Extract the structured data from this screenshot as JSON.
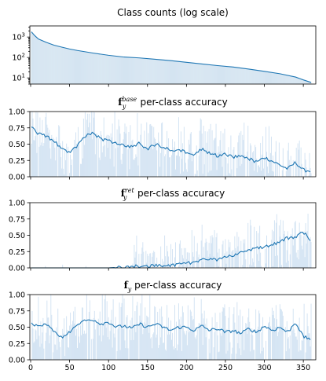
{
  "chart_data": [
    {
      "type": "area",
      "title": "Class counts (log scale)",
      "xlabel": "",
      "ylabel": "",
      "yscale": "log",
      "xlim": [
        -1,
        366
      ],
      "ylim": [
        5,
        3500
      ],
      "yticks": [
        10,
        100,
        1000
      ],
      "ytick_labels": [
        {
          "base": "10",
          "exp": "1"
        },
        {
          "base": "10",
          "exp": "2"
        },
        {
          "base": "10",
          "exp": "3"
        }
      ],
      "x_tick_labels_shown": false,
      "series": [
        {
          "x": [
            1,
            5,
            10,
            20,
            30,
            40,
            50,
            60,
            80,
            100,
            120,
            140,
            160,
            180,
            200,
            220,
            240,
            260,
            280,
            300,
            320,
            340,
            350,
            360
          ],
          "values": [
            1800,
            1200,
            800,
            550,
            400,
            320,
            260,
            220,
            165,
            128,
            105,
            95,
            82,
            70,
            58,
            48,
            40,
            34,
            27,
            21,
            16,
            11,
            8,
            6
          ]
        }
      ]
    },
    {
      "type": "bar",
      "title": {
        "prefix": "f",
        "sub": "y",
        "sup": "base",
        "suffix": " per-class accuracy"
      },
      "xlim": [
        -1,
        366
      ],
      "ylim": [
        0,
        1.0
      ],
      "yticks": [
        0,
        0.25,
        0.5,
        0.75,
        1.0
      ],
      "ytick_labels": [
        "0.00",
        "0.25",
        "0.50",
        "0.75",
        "1.00"
      ],
      "x_tick_labels_shown": false,
      "smoothed_line": {
        "x": [
          1,
          10,
          20,
          30,
          40,
          50,
          60,
          70,
          80,
          90,
          100,
          110,
          120,
          130,
          140,
          150,
          160,
          170,
          180,
          190,
          200,
          210,
          220,
          230,
          240,
          250,
          260,
          270,
          280,
          290,
          300,
          310,
          320,
          330,
          340,
          350,
          360
        ],
        "values": [
          0.78,
          0.66,
          0.62,
          0.55,
          0.42,
          0.38,
          0.48,
          0.62,
          0.68,
          0.58,
          0.55,
          0.52,
          0.48,
          0.46,
          0.52,
          0.42,
          0.5,
          0.46,
          0.4,
          0.42,
          0.38,
          0.35,
          0.42,
          0.36,
          0.32,
          0.35,
          0.3,
          0.33,
          0.28,
          0.22,
          0.3,
          0.24,
          0.18,
          0.12,
          0.22,
          0.1,
          0.09
        ]
      },
      "bar_values_note": "per-class accuracy bars scattered around the smoothed line"
    },
    {
      "type": "bar",
      "title": {
        "prefix": "f",
        "sub": "y",
        "sup": "ret",
        "suffix": " per-class accuracy"
      },
      "xlim": [
        -1,
        366
      ],
      "ylim": [
        0,
        1.0
      ],
      "yticks": [
        0,
        0.25,
        0.5,
        0.75,
        1.0
      ],
      "ytick_labels": [
        "0.00",
        "0.25",
        "0.50",
        "0.75",
        "1.00"
      ],
      "x_tick_labels_shown": false,
      "smoothed_line": {
        "x": [
          1,
          50,
          100,
          115,
          130,
          150,
          170,
          190,
          200,
          210,
          220,
          230,
          240,
          250,
          260,
          270,
          280,
          290,
          300,
          310,
          320,
          330,
          340,
          350,
          360
        ],
        "values": [
          0.0,
          0.0,
          0.0,
          0.01,
          0.02,
          0.03,
          0.04,
          0.05,
          0.07,
          0.09,
          0.12,
          0.15,
          0.12,
          0.17,
          0.2,
          0.24,
          0.28,
          0.3,
          0.32,
          0.35,
          0.4,
          0.46,
          0.47,
          0.55,
          0.42
        ]
      },
      "bar_values_note": "mostly zero for head classes, increasing towards tail classes"
    },
    {
      "type": "bar",
      "title": {
        "prefix": "f",
        "sub": "y",
        "sup": "",
        "suffix": " per-class accuracy"
      },
      "xlim": [
        -1,
        366
      ],
      "ylim": [
        0,
        1.0
      ],
      "yticks": [
        0,
        0.25,
        0.5,
        0.75,
        1.0
      ],
      "ytick_labels": [
        "0.00",
        "0.25",
        "0.50",
        "0.75",
        "1.00"
      ],
      "xticks": [
        0,
        50,
        100,
        150,
        200,
        250,
        300,
        350
      ],
      "x_tick_labels_shown": true,
      "smoothed_line": {
        "x": [
          1,
          10,
          20,
          30,
          40,
          50,
          60,
          70,
          80,
          90,
          100,
          110,
          120,
          130,
          140,
          150,
          160,
          170,
          180,
          190,
          200,
          210,
          220,
          230,
          240,
          250,
          260,
          270,
          280,
          290,
          300,
          310,
          320,
          330,
          340,
          350,
          360
        ],
        "values": [
          0.55,
          0.52,
          0.55,
          0.45,
          0.33,
          0.42,
          0.55,
          0.6,
          0.62,
          0.55,
          0.58,
          0.5,
          0.52,
          0.48,
          0.55,
          0.5,
          0.55,
          0.5,
          0.45,
          0.5,
          0.5,
          0.45,
          0.52,
          0.45,
          0.48,
          0.42,
          0.45,
          0.4,
          0.48,
          0.42,
          0.52,
          0.45,
          0.5,
          0.42,
          0.58,
          0.35,
          0.32
        ]
      },
      "bar_values_note": "per-class accuracy bars scattered around the smoothed line"
    }
  ]
}
